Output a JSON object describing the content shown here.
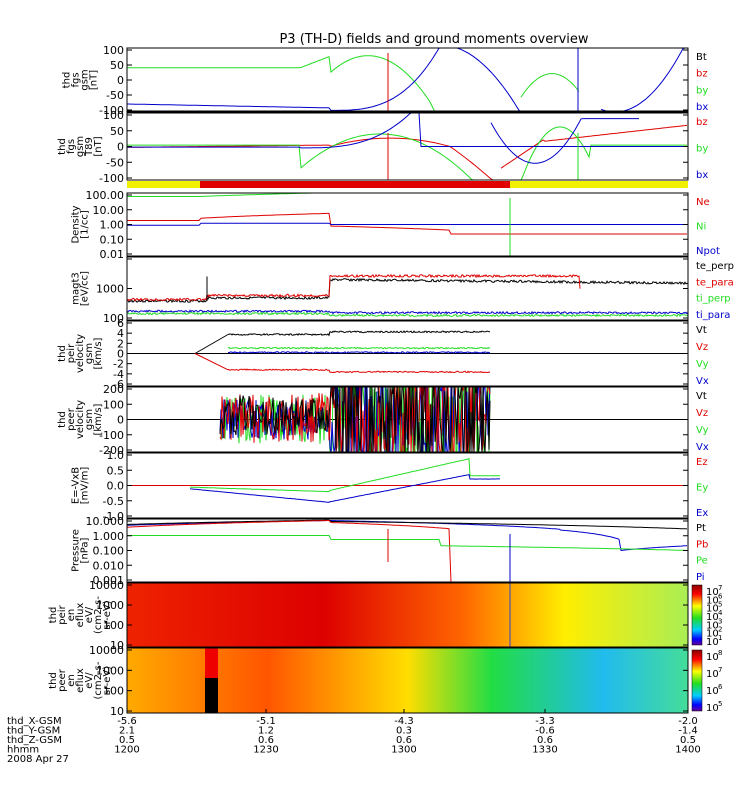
{
  "title": "P3 (TH-D) fields and ground moments overview",
  "colors": {
    "black": "#000000",
    "red": "#e00000",
    "green": "#22dd22",
    "blue": "#0000cc",
    "bar_yellow": "#f0f000",
    "bar_red": "#e00000"
  },
  "chart_data": [
    {
      "id": "p1",
      "type": "line",
      "ylabel": [
        "thd",
        "fgs",
        "gsm",
        "[nT]"
      ],
      "ylim": [
        -100,
        100
      ],
      "yticks": [
        "100",
        "50",
        "0",
        "-50",
        "-100"
      ],
      "series": [
        {
          "name": "Bt",
          "color": "#000000"
        },
        {
          "name": "bz",
          "color": "#e00000"
        },
        {
          "name": "by",
          "color": "#22dd22"
        },
        {
          "name": "bx",
          "color": "#0000cc"
        }
      ]
    },
    {
      "id": "p2",
      "type": "line",
      "ylabel": [
        "thd",
        "fgs",
        "gsm",
        "T89",
        "[nT]"
      ],
      "ylim": [
        -120,
        120
      ],
      "yticks": [
        "100",
        "50",
        "0",
        "-50",
        "-100"
      ],
      "series": [
        {
          "name": "bz",
          "color": "#e00000"
        },
        {
          "name": "by",
          "color": "#22dd22"
        },
        {
          "name": "bx",
          "color": "#0000cc"
        }
      ]
    },
    {
      "id": "p3",
      "type": "line",
      "log": true,
      "ylabel": [
        "Density",
        "[1/cc]"
      ],
      "ylim": [
        0.01,
        100
      ],
      "yticks": [
        "100.00",
        "10.00",
        "1.00",
        "0.10",
        "0.01"
      ],
      "series": [
        {
          "name": "Ne",
          "color": "#e00000"
        },
        {
          "name": "Ni",
          "color": "#22dd22"
        },
        {
          "name": "Npot",
          "color": "#0000cc"
        }
      ]
    },
    {
      "id": "p4",
      "type": "line",
      "log": true,
      "ylabel": [
        "magt3",
        "[eV/cc]"
      ],
      "ylim": [
        100,
        10000
      ],
      "yticks": [
        "",
        "1000",
        "100"
      ],
      "series": [
        {
          "name": "te_perp",
          "color": "#000000"
        },
        {
          "name": "te_para",
          "color": "#e00000"
        },
        {
          "name": "ti_perp",
          "color": "#22dd22"
        },
        {
          "name": "ti_para",
          "color": "#0000cc"
        }
      ]
    },
    {
      "id": "p5",
      "type": "line",
      "ylabel": [
        "thd",
        "peir",
        "velocity",
        "gsm",
        "[km/s]"
      ],
      "ylim": [
        -6,
        6
      ],
      "yticks": [
        "6",
        "4",
        "2",
        "0",
        "-2",
        "-4",
        "-6"
      ],
      "series": [
        {
          "name": "Vt",
          "color": "#000000"
        },
        {
          "name": "Vz",
          "color": "#e00000"
        },
        {
          "name": "Vy",
          "color": "#22dd22"
        },
        {
          "name": "Vx",
          "color": "#0000cc"
        }
      ]
    },
    {
      "id": "p6",
      "type": "line",
      "ylabel": [
        "thd",
        "peer",
        "velocity",
        "gsm",
        "[km/s]"
      ],
      "ylim": [
        -200,
        200
      ],
      "yticks": [
        "200",
        "100",
        "0",
        "-100",
        "-200"
      ],
      "series": [
        {
          "name": "Vt",
          "color": "#000000"
        },
        {
          "name": "Vz",
          "color": "#e00000"
        },
        {
          "name": "Vy",
          "color": "#22dd22"
        },
        {
          "name": "Vx",
          "color": "#0000cc"
        }
      ]
    },
    {
      "id": "p7",
      "type": "line",
      "ylabel": [
        "E=-VxB",
        "[mV/m]"
      ],
      "ylim": [
        -1.0,
        1.0
      ],
      "yticks": [
        "1.0",
        "0.5",
        "0.0",
        "-0.5",
        "-1.0"
      ],
      "series": [
        {
          "name": "Ez",
          "color": "#e00000"
        },
        {
          "name": "Ey",
          "color": "#22dd22"
        },
        {
          "name": "Ex",
          "color": "#0000cc"
        }
      ]
    },
    {
      "id": "p8",
      "type": "line",
      "log": true,
      "ylabel": [
        "Pressure",
        "[nPa]"
      ],
      "ylim": [
        0.001,
        10
      ],
      "yticks": [
        "10.000",
        "1.000",
        "0.100",
        "0.010",
        "0.001"
      ],
      "series": [
        {
          "name": "Pt",
          "color": "#000000"
        },
        {
          "name": "Pb",
          "color": "#e00000"
        },
        {
          "name": "Pe",
          "color": "#22dd22"
        },
        {
          "name": "Pi",
          "color": "#0000cc"
        }
      ]
    },
    {
      "id": "p9",
      "type": "heatmap",
      "log": true,
      "ylabel": [
        "thd",
        "peir",
        "en",
        "eflux",
        "eV/",
        "(cm2-s-",
        "sr-eV)"
      ],
      "ylim": [
        5,
        20000
      ],
      "yticks": [
        "10000",
        "1000",
        "100",
        "10"
      ],
      "colorbar": {
        "labels": [
          "10",
          "10",
          "10",
          "10",
          "10",
          "10",
          "10"
        ],
        "exponents": [
          "7",
          "6",
          "5",
          "4",
          "3",
          "2",
          "1"
        ]
      }
    },
    {
      "id": "p10",
      "type": "heatmap",
      "log": true,
      "ylabel": [
        "thd",
        "peer",
        "en",
        "eflux",
        "eV/",
        "(cm2-s-",
        "sr-eV)"
      ],
      "ylim": [
        5,
        20000
      ],
      "yticks": [
        "10000",
        "1000",
        "100",
        "10"
      ],
      "colorbar": {
        "labels": [
          "10",
          "10",
          "10",
          "10"
        ],
        "exponents": [
          "8",
          "7",
          "6",
          "5"
        ]
      }
    }
  ],
  "xaxis": {
    "row_labels": [
      "thd_X-GSM",
      "thd_Y-GSM",
      "thd_Z-GSM",
      "hhmm",
      "2008 Apr 27"
    ],
    "columns": [
      [
        "-5.6",
        "2.1",
        "0.5",
        "1200"
      ],
      [
        "-5.1",
        "1.2",
        "0.6",
        "1230"
      ],
      [
        "-4.3",
        "0.3",
        "0.6",
        "1300"
      ],
      [
        "-3.3",
        "-0.6",
        "0.6",
        "1330"
      ],
      [
        "-2.0",
        "-1.4",
        "0.5",
        "1400"
      ]
    ]
  }
}
